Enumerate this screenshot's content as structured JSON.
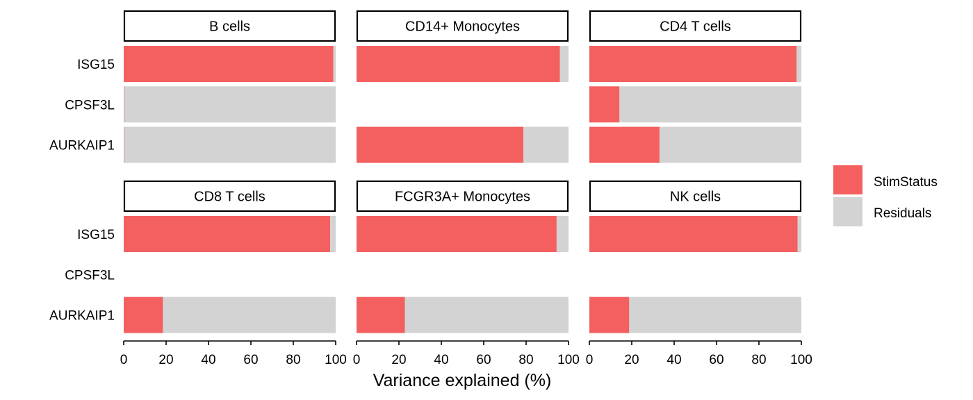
{
  "chart_data": {
    "type": "bar",
    "orientation": "horizontal",
    "stacked": true,
    "xlabel": "Variance explained (%)",
    "ylabel": "",
    "xlim": [
      0,
      100
    ],
    "xticks": [
      "0",
      "20",
      "40",
      "60",
      "80",
      "100"
    ],
    "categories": [
      "ISG15",
      "CPSF3L",
      "AURKAIP1"
    ],
    "legend": {
      "placement": "right",
      "entries": [
        {
          "name": "StimStatus",
          "color": "#F46060"
        },
        {
          "name": "Residuals",
          "color": "#D3D3D3"
        }
      ]
    },
    "panels": [
      {
        "title": "B cells",
        "stimstatus": [
          98.9,
          0.2,
          0.2
        ],
        "residuals": [
          1.1,
          99.8,
          99.8
        ]
      },
      {
        "title": "CD14+ Monocytes",
        "stimstatus": [
          95.9,
          null,
          78.7
        ],
        "residuals": [
          4.1,
          null,
          21.3
        ]
      },
      {
        "title": "CD4 T cells",
        "stimstatus": [
          97.8,
          14.2,
          33.1
        ],
        "residuals": [
          2.2,
          85.8,
          66.9
        ]
      },
      {
        "title": "CD8 T cells",
        "stimstatus": [
          97.4,
          null,
          18.5
        ],
        "residuals": [
          2.6,
          null,
          81.5
        ]
      },
      {
        "title": "FCGR3A+ Monocytes",
        "stimstatus": [
          94.4,
          null,
          22.8
        ],
        "residuals": [
          5.6,
          null,
          77.2
        ]
      },
      {
        "title": "NK cells",
        "stimstatus": [
          98.2,
          null,
          18.8
        ],
        "residuals": [
          1.8,
          null,
          81.2
        ]
      }
    ],
    "grid": false
  }
}
